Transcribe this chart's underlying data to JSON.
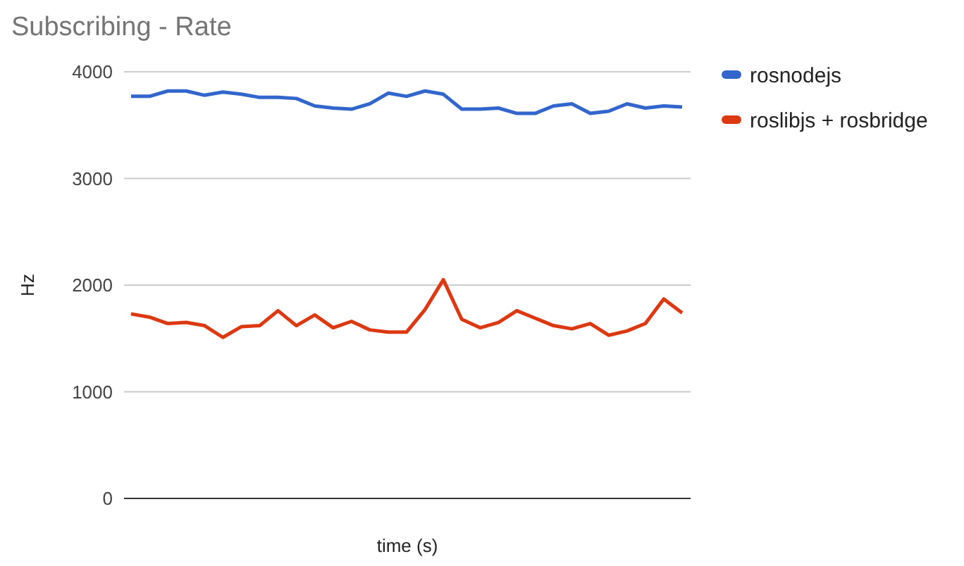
{
  "chart_data": {
    "type": "line",
    "title": "Subscribing - Rate",
    "xlabel": "time (s)",
    "ylabel": "Hz",
    "categories": [
      null,
      null,
      null,
      null,
      null,
      null,
      null,
      null,
      null,
      null,
      null,
      null,
      null,
      null,
      null,
      null,
      null,
      null,
      null,
      null,
      null,
      null,
      null,
      null,
      null,
      null,
      null,
      null,
      null,
      null,
      null
    ],
    "series": [
      {
        "name": "rosnodejs",
        "color": "#3366cc",
        "values": [
          3770,
          3770,
          3820,
          3820,
          3780,
          3810,
          3790,
          3760,
          3760,
          3750,
          3680,
          3660,
          3650,
          3700,
          3800,
          3770,
          3820,
          3790,
          3650,
          3650,
          3660,
          3610,
          3610,
          3680,
          3700,
          3610,
          3630,
          3700,
          3660,
          3680,
          3670
        ]
      },
      {
        "name": "roslibjs + rosbridge",
        "color": "#dc3912",
        "values": [
          1730,
          1700,
          1640,
          1650,
          1620,
          1510,
          1610,
          1620,
          1760,
          1620,
          1720,
          1600,
          1660,
          1580,
          1560,
          1560,
          1770,
          2050,
          1680,
          1600,
          1650,
          1760,
          1690,
          1620,
          1590,
          1640,
          1530,
          1570,
          1640,
          1870,
          1740
        ]
      }
    ],
    "ylim": [
      0,
      4000
    ],
    "yticks": [
      0,
      1000,
      2000,
      3000,
      4000
    ],
    "grid": "y",
    "legend": "right",
    "marker": "none",
    "line_style": "solid"
  }
}
